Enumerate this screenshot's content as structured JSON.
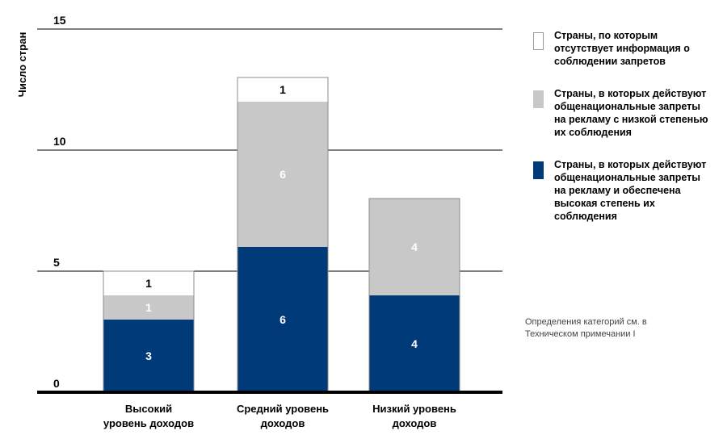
{
  "chart_data": {
    "type": "bar",
    "stacked": true,
    "ylabel": "Число стран",
    "xlabel": "",
    "ylim": [
      0,
      15
    ],
    "yticks": [
      0,
      5,
      10,
      15
    ],
    "grid": true,
    "categories": [
      "Высокий уровень доходов",
      "Средний уровень доходов",
      "Низкий уровень доходов"
    ],
    "category_lines": [
      [
        "Высокий",
        "уровень доходов"
      ],
      [
        "Средний уровень",
        "доходов"
      ],
      [
        "Низкий уровень",
        "доходов"
      ]
    ],
    "series": [
      {
        "name": "Страны, в которых действуют общенациональные запреты на рекламу и обеспечена высокая степень их соблюдения",
        "values": [
          3,
          6,
          4
        ],
        "color": "#003a78"
      },
      {
        "name": "Страны, в которых действуют общенациональные запреты на рекламу с низкой степенью их соблюдения",
        "values": [
          1,
          6,
          4
        ],
        "color": "#c8c8c8"
      },
      {
        "name": "Страны, по которым отсутствует информация о соблюдении запретов",
        "values": [
          1,
          1,
          0
        ],
        "color": "#ffffff"
      }
    ],
    "legend_position": "right"
  },
  "legend": {
    "items": [
      {
        "lines": [
          "Страны, по которым",
          "отсутствует информация о",
          "соблюдении запретов"
        ],
        "color": "#ffffff"
      },
      {
        "lines": [
          "Страны, в которых действуют",
          "общенациональные запреты",
          "на рекламу с низкой степенью",
          "их соблюдения"
        ],
        "color": "#c8c8c8"
      },
      {
        "lines": [
          "Страны, в которых действуют",
          "общенациональные запреты",
          "на рекламу и обеспечена",
          "высокая степень их",
          "соблюдения"
        ],
        "color": "#003a78"
      }
    ]
  },
  "note": {
    "lines": [
      "Определения категорий см. в",
      "Техническом примечании I"
    ]
  },
  "colors": {
    "dark_blue": "#003a78",
    "light_gray": "#c8c8c8",
    "white": "#ffffff",
    "axis": "#000000"
  }
}
